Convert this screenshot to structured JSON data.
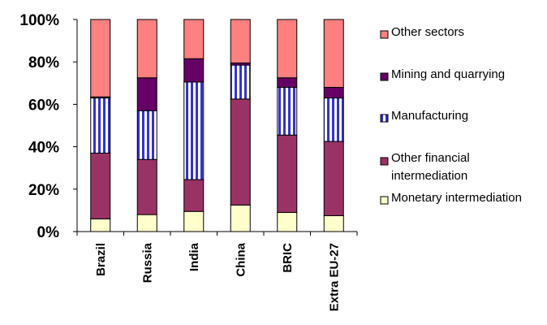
{
  "chart_data": {
    "type": "bar",
    "stacked": true,
    "percent": true,
    "categories": [
      "Brazil",
      "Russia",
      "India",
      "China",
      "BRIC",
      "Extra EU-27"
    ],
    "series": [
      {
        "name": "Monetary intermediation",
        "color": "#FFFFCC",
        "values": [
          6,
          8,
          9.5,
          12.5,
          9,
          7.5
        ]
      },
      {
        "name": "Other financial intermediation",
        "color": "#993366",
        "values": [
          31,
          26,
          15,
          50,
          36.5,
          35
        ]
      },
      {
        "name": "Manufacturing",
        "color": "#3333CC",
        "pattern": "vertical-stripes",
        "values": [
          26,
          23,
          46,
          16,
          22.5,
          20.5
        ]
      },
      {
        "name": "Mining and quarrying",
        "color": "#660066",
        "values": [
          0.5,
          15.5,
          11,
          1,
          4.5,
          5
        ]
      },
      {
        "name": "Other sectors",
        "color": "#FF8080",
        "values": [
          36.5,
          27.5,
          18.5,
          20.5,
          27.5,
          32
        ]
      }
    ],
    "legend_order": [
      "Other sectors",
      "Mining and quarrying",
      "Manufacturing",
      "Other financial intermediation",
      "Monetary intermediation"
    ],
    "yticks": [
      "0%",
      "20%",
      "40%",
      "60%",
      "80%",
      "100%"
    ],
    "ylim": [
      0,
      100
    ],
    "legend_position": "right",
    "grid": false
  }
}
